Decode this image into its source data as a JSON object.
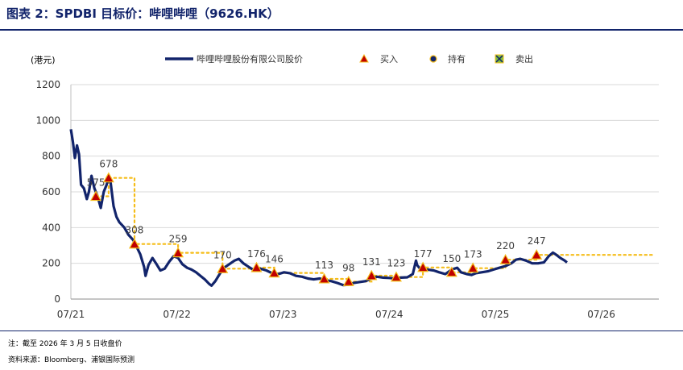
{
  "title": "图表 2：SPDBI 目标价：哔哩哔哩（9626.HK）",
  "note": "注：截至 2026 年 3 月 5 日收盘价",
  "source": "资料来源：Bloomberg、浦银国际预测",
  "colors": {
    "price_line": "#12246b",
    "target_line": "#f5bd1a",
    "buy_marker": "#c00000",
    "buy_fill": "#f5bd1a",
    "hold_marker": "#12246b",
    "sell_marker": "#7fbf3f",
    "title": "#12246b",
    "grid": "#d9d9d9"
  },
  "chart_data": {
    "type": "line",
    "unit_label": "(港元)",
    "ylim": [
      0,
      1200
    ],
    "yticks": [
      0,
      200,
      400,
      600,
      800,
      1000,
      1200
    ],
    "xlim": [
      "2021-07-01",
      "2027-01-15"
    ],
    "xticks": [
      {
        "label": "07/21",
        "date": "2021-07-01"
      },
      {
        "label": "07/22",
        "date": "2022-07-01"
      },
      {
        "label": "07/23",
        "date": "2023-07-01"
      },
      {
        "label": "07/24",
        "date": "2024-07-01"
      },
      {
        "label": "07/25",
        "date": "2025-07-01"
      },
      {
        "label": "07/26",
        "date": "2026-07-01"
      }
    ],
    "grid": "horizontal",
    "legend": {
      "position": "top",
      "entries": [
        "哔哩哔哩股份有限公司股价",
        "买入",
        "持有",
        "卖出"
      ]
    },
    "series": [
      {
        "name": "哔哩哔哩股份有限公司股价",
        "kind": "price",
        "points": [
          [
            "2021-07-01",
            950
          ],
          [
            "2021-07-08",
            880
          ],
          [
            "2021-07-15",
            790
          ],
          [
            "2021-07-22",
            860
          ],
          [
            "2021-07-29",
            810
          ],
          [
            "2021-08-05",
            640
          ],
          [
            "2021-08-15",
            620
          ],
          [
            "2021-08-25",
            560
          ],
          [
            "2021-09-01",
            600
          ],
          [
            "2021-09-10",
            690
          ],
          [
            "2021-09-20",
            620
          ],
          [
            "2021-10-01",
            575
          ],
          [
            "2021-10-12",
            510
          ],
          [
            "2021-10-22",
            600
          ],
          [
            "2021-11-01",
            640
          ],
          [
            "2021-11-08",
            678
          ],
          [
            "2021-11-15",
            650
          ],
          [
            "2021-11-25",
            520
          ],
          [
            "2021-12-05",
            460
          ],
          [
            "2021-12-15",
            430
          ],
          [
            "2022-01-01",
            400
          ],
          [
            "2022-01-15",
            360
          ],
          [
            "2022-02-01",
            330
          ],
          [
            "2022-02-10",
            300
          ],
          [
            "2022-02-25",
            250
          ],
          [
            "2022-03-10",
            180
          ],
          [
            "2022-03-15",
            130
          ],
          [
            "2022-03-25",
            190
          ],
          [
            "2022-04-08",
            230
          ],
          [
            "2022-04-20",
            200
          ],
          [
            "2022-05-05",
            160
          ],
          [
            "2022-05-20",
            170
          ],
          [
            "2022-06-05",
            210
          ],
          [
            "2022-06-20",
            240
          ],
          [
            "2022-07-05",
            230
          ],
          [
            "2022-07-20",
            195
          ],
          [
            "2022-08-05",
            175
          ],
          [
            "2022-08-20",
            165
          ],
          [
            "2022-09-05",
            150
          ],
          [
            "2022-09-20",
            130
          ],
          [
            "2022-10-05",
            110
          ],
          [
            "2022-10-20",
            85
          ],
          [
            "2022-10-28",
            75
          ],
          [
            "2022-11-10",
            100
          ],
          [
            "2022-11-25",
            140
          ],
          [
            "2022-12-10",
            175
          ],
          [
            "2022-12-28",
            195
          ],
          [
            "2023-01-15",
            215
          ],
          [
            "2023-01-30",
            225
          ],
          [
            "2023-02-15",
            200
          ],
          [
            "2023-03-05",
            180
          ],
          [
            "2023-03-25",
            160
          ],
          [
            "2023-04-15",
            170
          ],
          [
            "2023-05-05",
            160
          ],
          [
            "2023-05-25",
            145
          ],
          [
            "2023-06-15",
            140
          ],
          [
            "2023-07-05",
            150
          ],
          [
            "2023-07-25",
            145
          ],
          [
            "2023-08-15",
            130
          ],
          [
            "2023-09-05",
            125
          ],
          [
            "2023-09-25",
            115
          ],
          [
            "2023-10-15",
            110
          ],
          [
            "2023-11-05",
            115
          ],
          [
            "2023-11-25",
            105
          ],
          [
            "2023-12-15",
            100
          ],
          [
            "2024-01-05",
            90
          ],
          [
            "2024-01-25",
            78
          ],
          [
            "2024-02-10",
            80
          ],
          [
            "2024-02-28",
            90
          ],
          [
            "2024-03-20",
            95
          ],
          [
            "2024-04-10",
            100
          ],
          [
            "2024-05-01",
            115
          ],
          [
            "2024-05-20",
            125
          ],
          [
            "2024-06-10",
            120
          ],
          [
            "2024-07-01",
            118
          ],
          [
            "2024-07-20",
            115
          ],
          [
            "2024-08-10",
            120
          ],
          [
            "2024-09-01",
            122
          ],
          [
            "2024-09-20",
            140
          ],
          [
            "2024-10-01",
            215
          ],
          [
            "2024-10-05",
            190
          ],
          [
            "2024-10-20",
            160
          ],
          [
            "2024-11-10",
            165
          ],
          [
            "2024-12-01",
            160
          ],
          [
            "2024-12-20",
            150
          ],
          [
            "2025-01-10",
            140
          ],
          [
            "2025-02-01",
            165
          ],
          [
            "2025-02-20",
            175
          ],
          [
            "2025-03-05",
            150
          ],
          [
            "2025-03-25",
            140
          ],
          [
            "2025-04-10",
            135
          ],
          [
            "2025-04-25",
            145
          ],
          [
            "2025-05-15",
            150
          ],
          [
            "2025-06-05",
            155
          ],
          [
            "2025-06-25",
            165
          ],
          [
            "2025-07-15",
            175
          ],
          [
            "2025-08-05",
            185
          ],
          [
            "2025-08-25",
            200
          ],
          [
            "2025-09-10",
            220
          ],
          [
            "2025-09-25",
            225
          ],
          [
            "2025-10-15",
            215
          ],
          [
            "2025-11-05",
            200
          ],
          [
            "2025-11-25",
            200
          ],
          [
            "2025-12-15",
            205
          ],
          [
            "2026-01-01",
            240
          ],
          [
            "2026-01-15",
            260
          ],
          [
            "2026-01-25",
            250
          ],
          [
            "2026-02-10",
            230
          ],
          [
            "2026-02-25",
            215
          ],
          [
            "2026-03-05",
            205
          ]
        ]
      },
      {
        "name": "目标价",
        "kind": "target",
        "points": [
          [
            "2021-09-25",
            575
          ],
          [
            "2021-11-08",
            575
          ],
          [
            "2021-11-08",
            678
          ],
          [
            "2022-02-05",
            678
          ],
          [
            "2022-02-05",
            308
          ],
          [
            "2022-07-05",
            308
          ],
          [
            "2022-07-05",
            259
          ],
          [
            "2022-12-05",
            259
          ],
          [
            "2022-12-05",
            170
          ],
          [
            "2023-04-01",
            170
          ],
          [
            "2023-04-01",
            176
          ],
          [
            "2023-06-01",
            176
          ],
          [
            "2023-06-01",
            146
          ],
          [
            "2023-11-20",
            146
          ],
          [
            "2023-11-20",
            113
          ],
          [
            "2024-02-12",
            113
          ],
          [
            "2024-02-12",
            98
          ],
          [
            "2024-05-01",
            98
          ],
          [
            "2024-05-01",
            131
          ],
          [
            "2024-07-25",
            131
          ],
          [
            "2024-07-25",
            123
          ],
          [
            "2024-10-25",
            123
          ],
          [
            "2024-10-25",
            177
          ],
          [
            "2025-02-01",
            177
          ],
          [
            "2025-02-01",
            150
          ],
          [
            "2025-04-15",
            150
          ],
          [
            "2025-04-15",
            173
          ],
          [
            "2025-08-05",
            173
          ],
          [
            "2025-08-05",
            220
          ],
          [
            "2025-11-20",
            220
          ],
          [
            "2025-11-20",
            247
          ],
          [
            "2026-12-31",
            247
          ]
        ]
      }
    ],
    "markers": [
      {
        "type": "买入",
        "date": "2021-09-25",
        "value": 575,
        "label": "575"
      },
      {
        "type": "买入",
        "date": "2021-11-08",
        "value": 678,
        "label": "678"
      },
      {
        "type": "买入",
        "date": "2022-02-05",
        "value": 308,
        "label": "308"
      },
      {
        "type": "买入",
        "date": "2022-07-05",
        "value": 259,
        "label": "259"
      },
      {
        "type": "买入",
        "date": "2022-12-05",
        "value": 170,
        "label": "170"
      },
      {
        "type": "买入",
        "date": "2023-04-01",
        "value": 176,
        "label": "176"
      },
      {
        "type": "买入",
        "date": "2023-06-01",
        "value": 146,
        "label": "146"
      },
      {
        "type": "买入",
        "date": "2023-11-20",
        "value": 113,
        "label": "113"
      },
      {
        "type": "买入",
        "date": "2024-02-12",
        "value": 98,
        "label": "98"
      },
      {
        "type": "买入",
        "date": "2024-05-01",
        "value": 131,
        "label": "131"
      },
      {
        "type": "买入",
        "date": "2024-07-25",
        "value": 123,
        "label": "123"
      },
      {
        "type": "买入",
        "date": "2024-10-25",
        "value": 177,
        "label": "177"
      },
      {
        "type": "买入",
        "date": "2025-02-01",
        "value": 150,
        "label": "150"
      },
      {
        "type": "买入",
        "date": "2025-04-15",
        "value": 173,
        "label": "173"
      },
      {
        "type": "买入",
        "date": "2025-08-05",
        "value": 220,
        "label": "220"
      },
      {
        "type": "买入",
        "date": "2025-11-20",
        "value": 247,
        "label": "247"
      }
    ]
  }
}
